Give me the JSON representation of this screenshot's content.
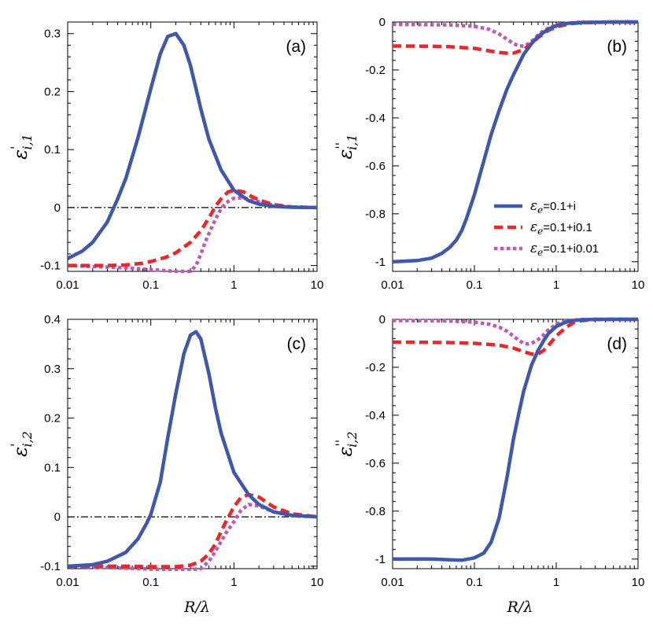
{
  "legend": {
    "entries": [
      {
        "label": "εe=0.1+i",
        "color": "#3F58A9",
        "dash": "solid"
      },
      {
        "label": "εe=0.1+i0.1",
        "color": "#E8282B",
        "dash": "dashed"
      },
      {
        "label": "εe=0.1+i0.01",
        "color": "#BD5BB4",
        "dash": "dotted"
      }
    ]
  },
  "chart_data": [
    {
      "panel": "(a)",
      "type": "line",
      "xscale": "log",
      "xlim": [
        0.01,
        10
      ],
      "ylim": [
        -0.11,
        0.32
      ],
      "xlabel": "",
      "ylabel": "ε'i,1",
      "xticks": [
        "0.01",
        "0.1",
        "1",
        "10"
      ],
      "yticks": [
        {
          "v": -0.1,
          "t": "-0.1"
        },
        {
          "v": 0,
          "t": "0"
        },
        {
          "v": 0.1,
          "t": "0.1"
        },
        {
          "v": 0.2,
          "t": "0.2"
        },
        {
          "v": 0.3,
          "t": "0.3"
        }
      ],
      "zero_line": true,
      "series": [
        {
          "name": "εe=0.1+i",
          "x": [
            0.01,
            0.015,
            0.02,
            0.03,
            0.04,
            0.05,
            0.07,
            0.1,
            0.13,
            0.16,
            0.2,
            0.25,
            0.3,
            0.4,
            0.5,
            0.7,
            1,
            1.5,
            2,
            3,
            5,
            10
          ],
          "y": [
            -0.088,
            -0.075,
            -0.06,
            -0.025,
            0.015,
            0.05,
            0.12,
            0.205,
            0.265,
            0.295,
            0.3,
            0.28,
            0.245,
            0.17,
            0.118,
            0.065,
            0.03,
            0.012,
            0.006,
            0.002,
            0.0005,
            0.0
          ]
        },
        {
          "name": "εe=0.1+i0.1",
          "x": [
            0.01,
            0.03,
            0.05,
            0.08,
            0.1,
            0.15,
            0.2,
            0.3,
            0.4,
            0.5,
            0.6,
            0.7,
            0.85,
            1,
            1.3,
            1.6,
            2,
            3,
            5,
            10
          ],
          "y": [
            -0.1,
            -0.1,
            -0.099,
            -0.096,
            -0.093,
            -0.086,
            -0.078,
            -0.06,
            -0.04,
            -0.018,
            0.002,
            0.015,
            0.027,
            0.03,
            0.027,
            0.02,
            0.013,
            0.005,
            0.001,
            0.0
          ]
        },
        {
          "name": "εe=0.1+i0.01",
          "x": [
            0.01,
            0.05,
            0.1,
            0.2,
            0.3,
            0.35,
            0.4,
            0.45,
            0.5,
            0.6,
            0.7,
            0.8,
            1,
            1.3,
            2,
            3,
            5,
            10
          ],
          "y": [
            -0.1,
            -0.104,
            -0.107,
            -0.11,
            -0.11,
            -0.1,
            -0.08,
            -0.06,
            -0.045,
            -0.02,
            -0.002,
            0.008,
            0.016,
            0.017,
            0.01,
            0.004,
            0.001,
            0.0
          ]
        }
      ]
    },
    {
      "panel": "(b)",
      "type": "line",
      "xscale": "log",
      "xlim": [
        0.01,
        10
      ],
      "ylim": [
        -1.04,
        0.0
      ],
      "xlabel": "",
      "ylabel": "ε''i,1",
      "xticks": [
        "0.01",
        "0.1",
        "1",
        "10"
      ],
      "yticks": [
        {
          "v": -1,
          "t": "-1"
        },
        {
          "v": -0.8,
          "t": "-0.8"
        },
        {
          "v": -0.6,
          "t": "-0.6"
        },
        {
          "v": -0.4,
          "t": "-0.4"
        },
        {
          "v": -0.2,
          "t": "-0.2"
        },
        {
          "v": 0,
          "t": "0"
        }
      ],
      "zero_line": false,
      "series": [
        {
          "name": "εe=0.1+i",
          "x": [
            0.01,
            0.02,
            0.03,
            0.04,
            0.05,
            0.06,
            0.07,
            0.08,
            0.1,
            0.13,
            0.16,
            0.2,
            0.25,
            0.3,
            0.4,
            0.5,
            0.6,
            0.8,
            1,
            1.3,
            2,
            5,
            10
          ],
          "y": [
            -1.0,
            -0.995,
            -0.985,
            -0.965,
            -0.94,
            -0.91,
            -0.87,
            -0.82,
            -0.72,
            -0.58,
            -0.47,
            -0.37,
            -0.28,
            -0.22,
            -0.135,
            -0.09,
            -0.06,
            -0.03,
            -0.015,
            -0.006,
            -0.002,
            0.0,
            0.0
          ]
        },
        {
          "name": "εe=0.1+i0.1",
          "x": [
            0.01,
            0.03,
            0.05,
            0.1,
            0.15,
            0.2,
            0.25,
            0.3,
            0.4,
            0.5,
            0.6,
            0.8,
            1,
            1.5,
            2,
            5,
            10
          ],
          "y": [
            -0.1,
            -0.101,
            -0.103,
            -0.11,
            -0.12,
            -0.127,
            -0.13,
            -0.13,
            -0.115,
            -0.09,
            -0.065,
            -0.035,
            -0.02,
            -0.007,
            -0.003,
            0.0,
            0.0
          ]
        },
        {
          "name": "εe=0.1+i0.01",
          "x": [
            0.01,
            0.05,
            0.1,
            0.15,
            0.2,
            0.25,
            0.3,
            0.35,
            0.4,
            0.45,
            0.5,
            0.6,
            0.7,
            1,
            1.5,
            2,
            5,
            10
          ],
          "y": [
            -0.01,
            -0.012,
            -0.018,
            -0.03,
            -0.05,
            -0.072,
            -0.09,
            -0.1,
            -0.1,
            -0.092,
            -0.08,
            -0.055,
            -0.035,
            -0.012,
            -0.004,
            -0.001,
            0.0,
            0.0
          ]
        }
      ]
    },
    {
      "panel": "(c)",
      "type": "line",
      "xscale": "log",
      "xlim": [
        0.01,
        10
      ],
      "ylim": [
        -0.105,
        0.4
      ],
      "xlabel": "R/λ",
      "ylabel": "ε'i,2",
      "xticks": [
        "0.01",
        "0.1",
        "1",
        "10"
      ],
      "yticks": [
        {
          "v": -0.1,
          "t": "-0.1"
        },
        {
          "v": 0,
          "t": "0"
        },
        {
          "v": 0.1,
          "t": "0.1"
        },
        {
          "v": 0.2,
          "t": "0.2"
        },
        {
          "v": 0.3,
          "t": "0.3"
        },
        {
          "v": 0.4,
          "t": "0.4"
        }
      ],
      "zero_line": true,
      "series": [
        {
          "name": "εe=0.1+i",
          "x": [
            0.01,
            0.02,
            0.03,
            0.05,
            0.07,
            0.09,
            0.1,
            0.13,
            0.16,
            0.2,
            0.25,
            0.3,
            0.35,
            0.4,
            0.5,
            0.6,
            0.7,
            1,
            1.5,
            2,
            3,
            5,
            10
          ],
          "y": [
            -0.1,
            -0.097,
            -0.09,
            -0.072,
            -0.045,
            -0.012,
            0.005,
            0.07,
            0.16,
            0.25,
            0.33,
            0.368,
            0.375,
            0.36,
            0.29,
            0.22,
            0.17,
            0.09,
            0.045,
            0.025,
            0.01,
            0.003,
            0.0
          ]
        },
        {
          "name": "εe=0.1+i0.1",
          "x": [
            0.01,
            0.05,
            0.1,
            0.2,
            0.3,
            0.4,
            0.5,
            0.6,
            0.7,
            0.8,
            1,
            1.2,
            1.5,
            2,
            3,
            5,
            10
          ],
          "y": [
            -0.1,
            -0.1,
            -0.101,
            -0.101,
            -0.098,
            -0.09,
            -0.075,
            -0.055,
            -0.03,
            -0.01,
            0.02,
            0.038,
            0.045,
            0.04,
            0.02,
            0.006,
            0.0
          ]
        },
        {
          "name": "εe=0.1+i0.01",
          "x": [
            0.01,
            0.05,
            0.1,
            0.2,
            0.3,
            0.4,
            0.5,
            0.6,
            0.7,
            0.8,
            1,
            1.2,
            1.5,
            2,
            3,
            5,
            10
          ],
          "y": [
            -0.1,
            -0.104,
            -0.106,
            -0.107,
            -0.107,
            -0.105,
            -0.09,
            -0.07,
            -0.05,
            -0.033,
            -0.01,
            0.012,
            0.025,
            0.022,
            0.01,
            0.002,
            0.0
          ]
        }
      ]
    },
    {
      "panel": "(d)",
      "type": "line",
      "xscale": "log",
      "xlim": [
        0.01,
        10
      ],
      "ylim": [
        -1.04,
        0.0
      ],
      "xlabel": "R/λ",
      "ylabel": "ε''i,2",
      "xticks": [
        "0.01",
        "0.1",
        "1",
        "10"
      ],
      "yticks": [
        {
          "v": -1,
          "t": "-1"
        },
        {
          "v": -0.8,
          "t": "-0.8"
        },
        {
          "v": -0.6,
          "t": "-0.6"
        },
        {
          "v": -0.4,
          "t": "-0.4"
        },
        {
          "v": -0.2,
          "t": "-0.2"
        },
        {
          "v": 0,
          "t": "0"
        }
      ],
      "zero_line": false,
      "series": [
        {
          "name": "εe=0.1+i",
          "x": [
            0.01,
            0.03,
            0.05,
            0.07,
            0.1,
            0.13,
            0.16,
            0.2,
            0.25,
            0.3,
            0.35,
            0.4,
            0.5,
            0.6,
            0.7,
            0.8,
            1,
            1.3,
            1.6,
            2,
            3,
            5,
            10
          ],
          "y": [
            -1.0,
            -1.0,
            -1.003,
            -1.005,
            -0.995,
            -0.975,
            -0.93,
            -0.83,
            -0.66,
            -0.5,
            -0.39,
            -0.3,
            -0.19,
            -0.13,
            -0.09,
            -0.06,
            -0.03,
            -0.012,
            -0.005,
            -0.002,
            0.0,
            0.0,
            0.0
          ]
        },
        {
          "name": "εe=0.1+i0.1",
          "x": [
            0.01,
            0.03,
            0.05,
            0.1,
            0.2,
            0.3,
            0.4,
            0.5,
            0.6,
            0.7,
            0.8,
            1,
            1.3,
            1.6,
            2,
            3,
            5,
            10
          ],
          "y": [
            -0.095,
            -0.096,
            -0.097,
            -0.1,
            -0.108,
            -0.12,
            -0.135,
            -0.145,
            -0.145,
            -0.13,
            -0.11,
            -0.07,
            -0.035,
            -0.015,
            -0.006,
            -0.001,
            0.0,
            0.0
          ]
        },
        {
          "name": "εe=0.1+i0.01",
          "x": [
            0.01,
            0.05,
            0.1,
            0.15,
            0.2,
            0.25,
            0.3,
            0.35,
            0.4,
            0.45,
            0.5,
            0.6,
            0.7,
            0.8,
            1,
            1.3,
            2,
            5,
            10
          ],
          "y": [
            -0.005,
            -0.007,
            -0.012,
            -0.02,
            -0.032,
            -0.05,
            -0.07,
            -0.088,
            -0.1,
            -0.103,
            -0.1,
            -0.085,
            -0.065,
            -0.045,
            -0.02,
            -0.006,
            -0.001,
            0.0,
            0.0
          ]
        }
      ]
    }
  ]
}
